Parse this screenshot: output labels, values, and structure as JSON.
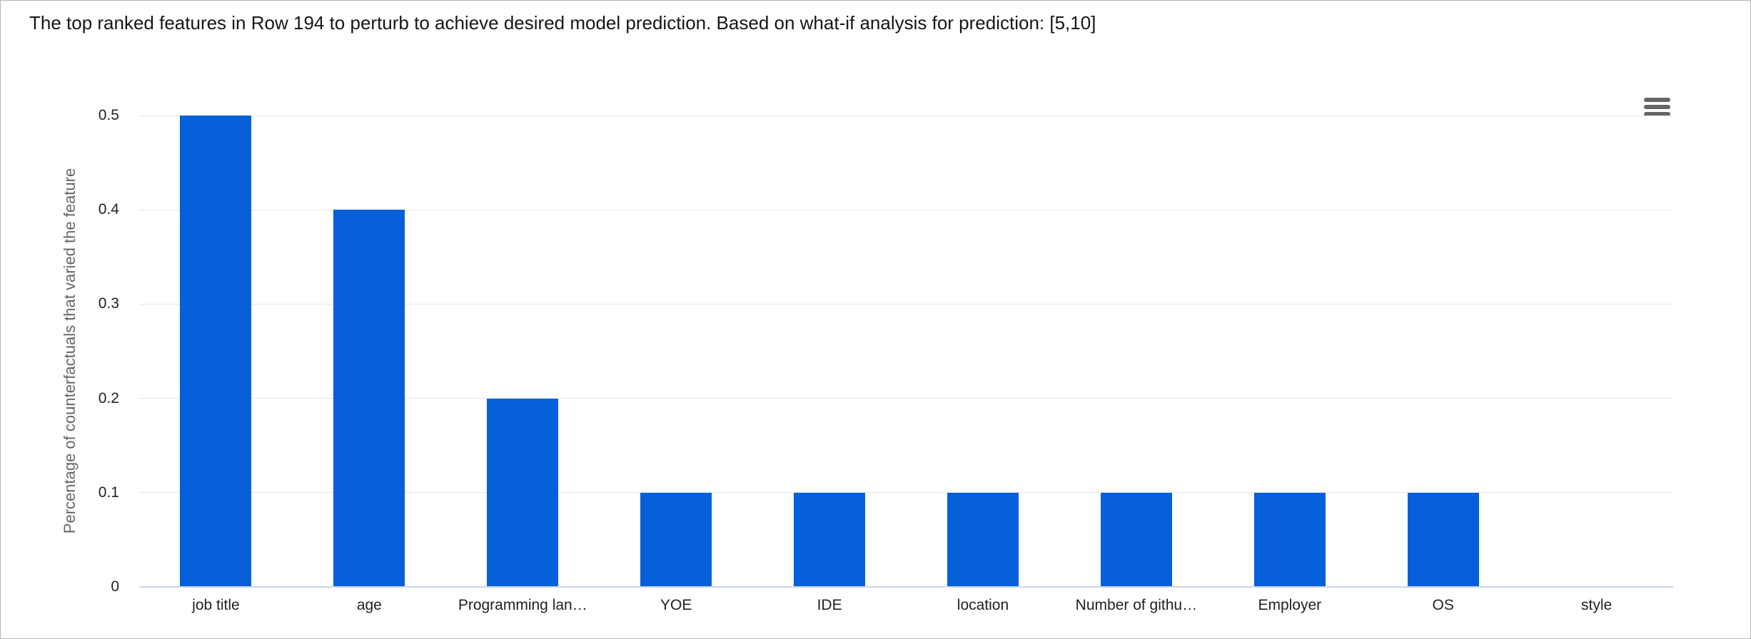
{
  "header": {
    "title": "The top ranked features in Row 194 to perturb to achieve desired model prediction. Based on what-if analysis for prediction: [5,10]"
  },
  "toolbar": {
    "menu_icon": "hamburger-icon"
  },
  "chart_data": {
    "type": "bar",
    "title": "",
    "categories": [
      "job title",
      "age",
      "Programming lan…",
      "YOE",
      "IDE",
      "location",
      "Number of githu…",
      "Employer",
      "OS",
      "style"
    ],
    "values": [
      0.5,
      0.4,
      0.2,
      0.1,
      0.1,
      0.1,
      0.1,
      0.1,
      0.1,
      0
    ],
    "xlabel": "",
    "ylabel": "Percentage of counterfactuals that varied the feature",
    "ylim": [
      0,
      0.5
    ],
    "yticks": [
      0,
      0.1,
      0.2,
      0.3,
      0.4,
      0.5
    ],
    "ytick_labels": [
      "0",
      "0.1",
      "0.2",
      "0.3",
      "0.4",
      "0.5"
    ],
    "grid": true,
    "legend": "none"
  },
  "colors": {
    "bar": "#0560d9",
    "grid": "#e6e6e6",
    "axis_line": "#ccd6eb",
    "tick_label": "#222222",
    "axis_title": "#666666",
    "title": "#161616",
    "menu_icon": "#666666",
    "page_border": "#b6b6b6"
  }
}
